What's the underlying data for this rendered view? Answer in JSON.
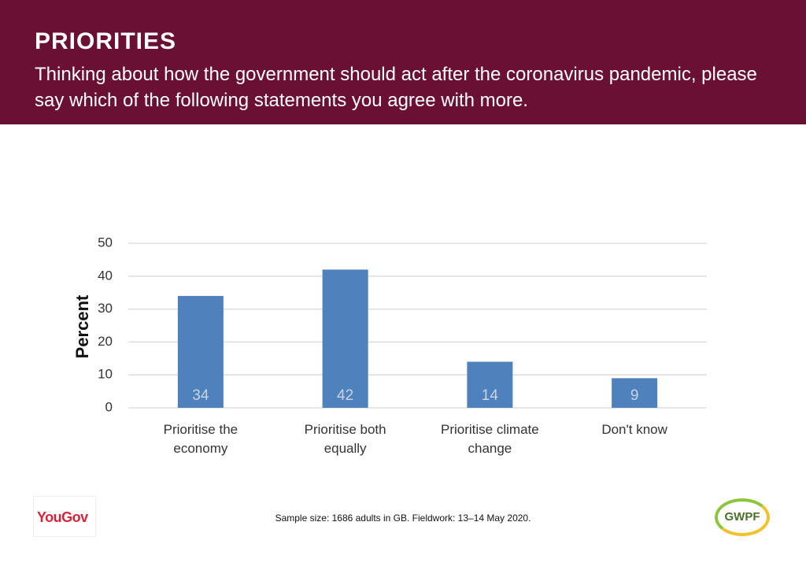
{
  "chart_data": {
    "type": "bar",
    "title": "PRIORITIES",
    "subtitle": "Thinking about how the government should act after the coronavirus pandemic, please say which of the following statements you agree with more.",
    "y_label": "Percent",
    "categories": [
      "Prioritise the economy",
      "Prioritise both equally",
      "Prioritise climate change",
      "Don't know"
    ],
    "values": [
      34,
      42,
      14,
      9
    ],
    "color": "#4f81bd",
    "ylim": [
      0,
      50
    ],
    "yticks": [
      0,
      10,
      20,
      30,
      40,
      50
    ],
    "grid": true,
    "note": "Sample size: 1686 adults in GB. Fieldwork: 13–14 May 2020."
  },
  "logos": {
    "left": "YouGov",
    "right": "GWPF"
  }
}
